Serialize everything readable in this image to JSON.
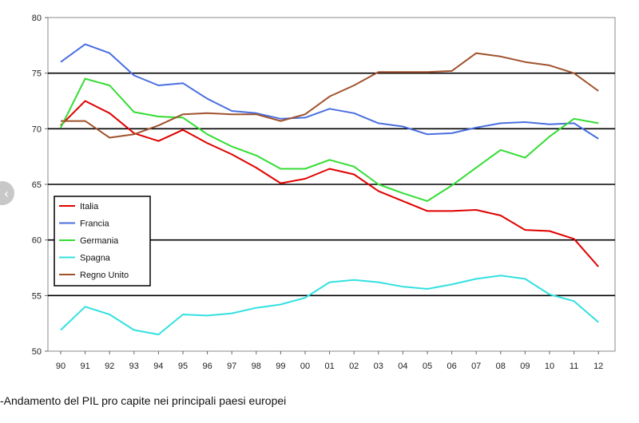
{
  "caption": "-Andamento del PIL pro capite nei principali paesi europei",
  "nav": {
    "back_glyph": "‹"
  },
  "chart_data": {
    "type": "line",
    "title": "",
    "xlabel": "",
    "ylabel": "",
    "categories": [
      "90",
      "91",
      "92",
      "93",
      "94",
      "95",
      "96",
      "97",
      "98",
      "99",
      "00",
      "01",
      "02",
      "03",
      "04",
      "05",
      "06",
      "07",
      "08",
      "09",
      "10",
      "11",
      "12"
    ],
    "ylim": [
      50,
      80
    ],
    "yticks": [
      50,
      55,
      60,
      65,
      70,
      75,
      80
    ],
    "grid": "horizontal at 55, 60, 65, 70, 75",
    "legend_position": "lower-left",
    "series": [
      {
        "name": "Italia",
        "color": "#e00000",
        "values": [
          70.3,
          72.5,
          71.4,
          69.6,
          68.9,
          69.9,
          68.7,
          67.7,
          66.5,
          65.1,
          65.5,
          66.4,
          65.9,
          64.4,
          63.5,
          62.6,
          62.6,
          62.7,
          62.2,
          60.9,
          60.8,
          60.1,
          57.6
        ]
      },
      {
        "name": "Francia",
        "color": "#4a6fe0",
        "values": [
          76.0,
          77.6,
          76.8,
          74.8,
          73.9,
          74.1,
          72.7,
          71.6,
          71.4,
          70.9,
          71.0,
          71.8,
          71.4,
          70.5,
          70.2,
          69.5,
          69.6,
          70.1,
          70.5,
          70.6,
          70.4,
          70.5,
          69.1
        ]
      },
      {
        "name": "Germania",
        "color": "#33dd33",
        "values": [
          70.1,
          74.5,
          73.9,
          71.5,
          71.1,
          71.0,
          69.5,
          68.4,
          67.6,
          66.4,
          66.4,
          67.2,
          66.6,
          65.0,
          64.2,
          63.5,
          64.9,
          66.5,
          68.1,
          67.4,
          69.3,
          70.9,
          70.5
        ]
      },
      {
        "name": "Spagna",
        "color": "#33e0e0",
        "values": [
          51.9,
          54.0,
          53.3,
          51.9,
          51.5,
          53.3,
          53.2,
          53.4,
          53.9,
          54.2,
          54.8,
          56.2,
          56.4,
          56.2,
          55.8,
          55.6,
          56.0,
          56.5,
          56.8,
          56.5,
          55.1,
          54.5,
          52.6
        ]
      },
      {
        "name": "Regno Unito",
        "color": "#a0522d",
        "values": [
          70.7,
          70.7,
          69.2,
          69.5,
          70.3,
          71.3,
          71.4,
          71.3,
          71.3,
          70.7,
          71.3,
          72.9,
          73.9,
          75.1,
          75.1,
          75.1,
          75.2,
          76.8,
          76.5,
          76.0,
          75.7,
          75.0,
          73.4
        ]
      }
    ]
  }
}
